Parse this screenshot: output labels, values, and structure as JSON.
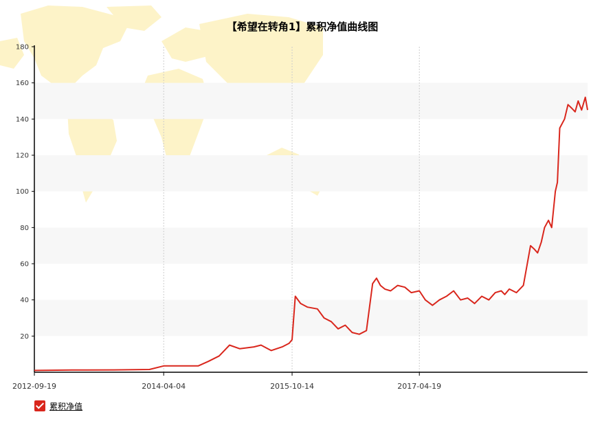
{
  "colors": {
    "line": "#d9261c",
    "band": "#f7f7f7",
    "map": "#fdf3c8",
    "axis": "#000000",
    "grid": "#cccccc"
  },
  "chart_data": {
    "type": "line",
    "title": "【希望在转角1】累积净值曲线图",
    "xlabel": "",
    "ylabel": "",
    "x_range": [
      "2012-09-19",
      "2019-04-20"
    ],
    "ylim": [
      0,
      180
    ],
    "y_ticks": [
      20,
      40,
      60,
      80,
      100,
      120,
      140,
      160,
      180
    ],
    "x_ticks": [
      "2012-09-19",
      "2014-04-04",
      "2015-10-14",
      "2017-04-19"
    ],
    "grid": "alternating horizontal bands, dotted vertical lines",
    "legend_position": "bottom-left",
    "series": [
      {
        "name": "累积净值",
        "x": [
          "2012-09-19",
          "2013-03-01",
          "2013-09-01",
          "2014-02-01",
          "2014-04-04",
          "2014-09-01",
          "2014-10-15",
          "2014-12-01",
          "2015-01-15",
          "2015-03-01",
          "2015-05-01",
          "2015-06-01",
          "2015-07-15",
          "2015-09-01",
          "2015-10-01",
          "2015-10-14",
          "2015-10-28",
          "2015-11-20",
          "2015-12-20",
          "2016-02-01",
          "2016-03-01",
          "2016-04-01",
          "2016-05-01",
          "2016-06-01",
          "2016-07-01",
          "2016-08-01",
          "2016-09-01",
          "2016-09-28",
          "2016-10-15",
          "2016-11-01",
          "2016-11-20",
          "2016-12-15",
          "2017-01-15",
          "2017-02-15",
          "2017-03-15",
          "2017-04-19",
          "2017-05-15",
          "2017-06-15",
          "2017-07-15",
          "2017-08-15",
          "2017-09-15",
          "2017-10-15",
          "2017-11-15",
          "2017-12-15",
          "2018-01-15",
          "2018-02-15",
          "2018-03-15",
          "2018-04-10",
          "2018-04-25",
          "2018-05-15",
          "2018-06-15",
          "2018-07-15",
          "2018-08-15",
          "2018-09-01",
          "2018-09-15",
          "2018-10-01",
          "2018-10-15",
          "2018-11-01",
          "2018-11-15",
          "2018-12-01",
          "2018-12-10",
          "2018-12-20",
          "2019-01-10",
          "2019-01-25",
          "2019-02-10",
          "2019-02-25",
          "2019-03-10",
          "2019-03-25",
          "2019-04-10",
          "2019-04-20"
        ],
        "values": [
          1,
          1.2,
          1.3,
          1.5,
          3.5,
          3.5,
          6,
          9,
          15,
          13,
          14,
          15,
          12,
          14,
          16,
          18,
          42,
          38,
          36,
          35,
          30,
          28,
          24,
          26,
          22,
          21,
          23,
          49,
          52,
          48,
          46,
          45,
          48,
          47,
          44,
          45,
          40,
          37,
          40,
          42,
          45,
          40,
          41,
          38,
          42,
          40,
          44,
          45,
          43,
          46,
          44,
          48,
          70,
          68,
          66,
          72,
          80,
          84,
          80,
          100,
          105,
          135,
          140,
          148,
          146,
          144,
          150,
          145,
          152,
          145
        ]
      }
    ]
  }
}
